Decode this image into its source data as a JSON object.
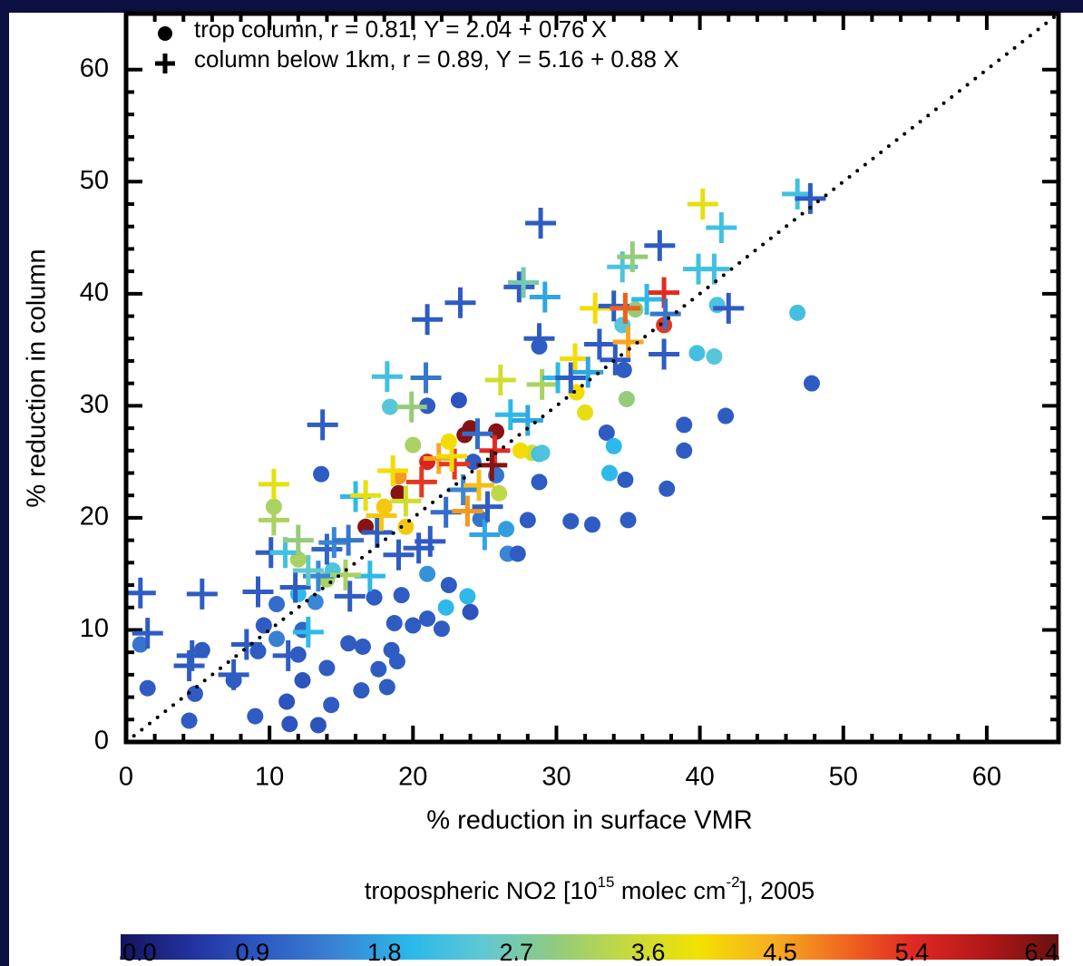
{
  "chart_data": {
    "type": "scatter",
    "xlabel": "% reduction in surface VMR",
    "ylabel": "% reduction in column",
    "xlim": [
      0,
      65
    ],
    "ylim": [
      0,
      65
    ],
    "xticks": [
      0,
      10,
      20,
      30,
      40,
      50,
      60
    ],
    "yticks": [
      0,
      10,
      20,
      30,
      40,
      50,
      60
    ],
    "identity_line": true,
    "legend": "upper left",
    "colorbar": {
      "title_parts": [
        "tropospheric NO2 [10",
        "15",
        " molec cm",
        "-2",
        "], 2005"
      ],
      "clim": [
        0,
        6.4
      ],
      "ticks": [
        {
          "value": 0,
          "label": "0.0"
        },
        0.9,
        1.8,
        2.7,
        3.6,
        4.5,
        5.4,
        6.4
      ],
      "colormap": [
        "#14145e",
        "#2233a0",
        "#2e5bc2",
        "#3a84d4",
        "#2ab8ea",
        "#5ec8d6",
        "#8fcb80",
        "#c5d940",
        "#f2e200",
        "#f8b020",
        "#f06a20",
        "#e02822",
        "#b01818",
        "#6a1010"
      ]
    },
    "series": [
      {
        "name": "trop column, r = 0.81, Y = 2.04 + 0.76 X",
        "marker": "circle",
        "x": [
          1.0,
          1.5,
          4.4,
          4.8,
          5.3,
          7.5,
          9.0,
          9.2,
          9.6,
          10.5,
          11.2,
          11.4,
          12.0,
          12.3,
          12.3,
          13.4,
          13.6,
          14.3,
          14.0,
          15.5,
          16.4,
          16.5,
          17.3,
          17.6,
          18.2,
          18.5,
          18.7,
          18.9,
          19.2,
          20.0,
          21.0,
          21.0,
          22.0,
          22.5,
          23.2,
          24.0,
          24.7,
          25.8,
          26.6,
          27.3,
          28.0,
          28.8,
          28.8,
          31.0,
          32.5,
          33.5,
          34.8,
          35.0,
          37.7,
          38.9,
          38.9,
          41.8,
          47.8,
          46.8,
          39.8,
          41.0,
          41.2,
          37.5,
          35.5,
          34.6,
          34.9,
          32.0,
          28.3,
          27.5,
          28.8,
          26.0,
          24.2,
          23.6,
          24.0,
          25.8,
          19.0,
          16.7,
          18.0,
          19.0,
          21.0,
          22.5,
          20.0,
          18.4,
          10.3,
          12.0,
          14.0,
          14.4,
          12.0,
          10.5,
          13.2,
          22.3,
          21.0,
          23.8,
          26.5,
          29.0,
          31.4,
          34.0,
          33.7,
          34.7,
          19.5
        ],
        "values": [
          8.7,
          4.8,
          1.9,
          4.3,
          8.2,
          5.5,
          2.3,
          8.1,
          10.4,
          12.3,
          3.6,
          1.6,
          7.8,
          5.5,
          10.0,
          1.5,
          23.9,
          3.3,
          6.6,
          8.8,
          4.6,
          8.5,
          12.9,
          6.5,
          4.9,
          8.2,
          10.6,
          7.2,
          13.1,
          10.4,
          11.0,
          30.0,
          10.1,
          14.0,
          30.5,
          11.6,
          19.9,
          23.8,
          16.8,
          16.8,
          19.8,
          23.2,
          35.3,
          19.7,
          19.4,
          27.6,
          23.4,
          19.8,
          22.6,
          28.3,
          26.0,
          29.1,
          32.0,
          38.3,
          34.7,
          34.4,
          39.0,
          37.2,
          38.6,
          37.2,
          30.6,
          29.4,
          25.8,
          26.0,
          25.7,
          22.2,
          25.0,
          27.4,
          28.0,
          27.7,
          22.2,
          19.2,
          21.0,
          23.7,
          25.0,
          26.8,
          26.5,
          29.9,
          21.0,
          16.3,
          14.5,
          15.3,
          13.2,
          9.2,
          12.5,
          12.0,
          15.0,
          13.0,
          19.0,
          25.8,
          31.2,
          26.4,
          24.0,
          33.2,
          19.2
        ],
        "c": [
          1.3,
          1.0,
          1.0,
          1.0,
          1.0,
          1.0,
          1.0,
          1.0,
          1.0,
          1.2,
          0.9,
          0.9,
          1.0,
          0.9,
          1.1,
          0.9,
          1.0,
          1.0,
          1.0,
          1.0,
          1.0,
          1.0,
          1.0,
          1.0,
          1.0,
          1.0,
          1.0,
          1.0,
          1.0,
          1.0,
          1.0,
          1.0,
          1.0,
          1.0,
          0.9,
          0.9,
          1.3,
          1.3,
          1.5,
          1.0,
          1.0,
          1.0,
          1.0,
          1.0,
          1.0,
          1.0,
          1.0,
          1.0,
          1.0,
          1.0,
          1.0,
          1.0,
          1.0,
          2.2,
          2.2,
          2.4,
          2.3,
          5.3,
          3.0,
          2.4,
          3.0,
          3.8,
          3.6,
          4.0,
          2.2,
          3.4,
          1.0,
          6.2,
          6.2,
          6.2,
          6.2,
          6.2,
          4.2,
          4.6,
          5.5,
          4.0,
          3.2,
          2.4,
          3.2,
          3.2,
          3.2,
          2.3,
          2.0,
          1.4,
          1.5,
          2.0,
          1.6,
          2.0,
          1.7,
          2.3,
          4.0,
          2.0,
          2.0,
          1.0,
          4.2
        ]
      },
      {
        "name": "column below 1km, r = 0.89, Y = 5.16 + 0.88 X",
        "marker": "plus",
        "x": [
          1.0,
          1.5,
          4.4,
          4.6,
          5.3,
          7.5,
          8.4,
          9.2,
          10.1,
          10.3,
          10.3,
          11.1,
          11.3,
          11.8,
          12.0,
          12.7,
          13.4,
          13.7,
          14.0,
          14.5,
          15.6,
          15.5,
          16.0,
          16.7,
          17.0,
          17.5,
          17.8,
          18.2,
          18.6,
          19.0,
          19.5,
          19.9,
          20.4,
          20.6,
          20.9,
          21.0,
          21.2,
          21.8,
          22.3,
          22.9,
          23.3,
          23.5,
          23.8,
          24.5,
          24.6,
          25.0,
          25.2,
          25.7,
          26.1,
          26.8,
          27.4,
          27.7,
          28.0,
          28.9,
          28.8,
          29.0,
          29.2,
          30.1,
          31.0,
          31.3,
          32.2,
          32.7,
          33.0,
          34.0,
          34.1,
          34.6,
          34.8,
          35.0,
          35.3,
          36.3,
          37.5,
          37.5,
          37.6,
          37.2,
          39.9,
          40.2,
          41.0,
          41.5,
          42.0,
          46.8,
          47.7,
          15.3,
          12.7,
          25.5,
          22.7
        ],
        "values": [
          13.3,
          9.7,
          6.8,
          7.7,
          13.2,
          6.0,
          8.7,
          13.4,
          16.9,
          23.0,
          19.8,
          16.9,
          7.7,
          13.8,
          18.0,
          9.8,
          14.8,
          28.3,
          17.2,
          17.8,
          13.0,
          18.0,
          21.9,
          22.0,
          14.8,
          18.7,
          20.2,
          32.6,
          24.2,
          16.7,
          21.5,
          29.9,
          17.3,
          23.2,
          32.5,
          37.7,
          17.9,
          25.3,
          20.5,
          24.8,
          39.2,
          22.5,
          20.6,
          27.5,
          22.9,
          18.5,
          21.0,
          26.0,
          32.3,
          29.2,
          40.6,
          41.0,
          28.7,
          46.3,
          36.0,
          31.9,
          39.7,
          32.5,
          32.5,
          34.2,
          33.0,
          38.7,
          35.5,
          38.9,
          34.1,
          42.4,
          38.7,
          35.7,
          43.3,
          39.5,
          40.1,
          34.6,
          38.2,
          44.3,
          42.2,
          48.0,
          42.2,
          45.9,
          38.7,
          48.9,
          48.5,
          14.9,
          15.3,
          24.7,
          25.5
        ],
        "c": [
          1.0,
          1.0,
          1.0,
          1.0,
          1.0,
          1.0,
          1.0,
          1.0,
          1.0,
          3.8,
          3.2,
          2.2,
          1.0,
          1.0,
          3.0,
          2.0,
          1.5,
          1.0,
          1.1,
          1.5,
          1.0,
          1.3,
          2.0,
          3.8,
          2.0,
          1.0,
          4.2,
          2.2,
          4.0,
          1.0,
          3.6,
          3.0,
          1.0,
          5.3,
          1.3,
          1.0,
          1.0,
          4.5,
          1.2,
          5.3,
          1.0,
          1.5,
          4.6,
          1.2,
          4.3,
          1.8,
          1.0,
          5.4,
          3.6,
          2.0,
          1.0,
          2.7,
          1.8,
          1.0,
          1.0,
          3.2,
          1.8,
          2.0,
          1.0,
          4.0,
          1.8,
          4.0,
          1.0,
          1.0,
          1.0,
          2.3,
          5.0,
          4.5,
          3.0,
          2.0,
          5.4,
          1.0,
          1.3,
          1.0,
          2.2,
          3.8,
          2.2,
          2.2,
          1.0,
          2.2,
          1.0,
          3.2,
          2.5,
          6.2,
          4.0
        ]
      }
    ]
  }
}
